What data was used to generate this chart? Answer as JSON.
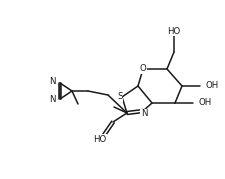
{
  "bg_color": "#ffffff",
  "line_color": "#1a1a1a",
  "line_width": 1.1,
  "font_size": 6.2,
  "figw": 2.26,
  "figh": 1.79,
  "dpi": 100,
  "xlim": [
    0,
    226
  ],
  "ylim": [
    0,
    179
  ]
}
